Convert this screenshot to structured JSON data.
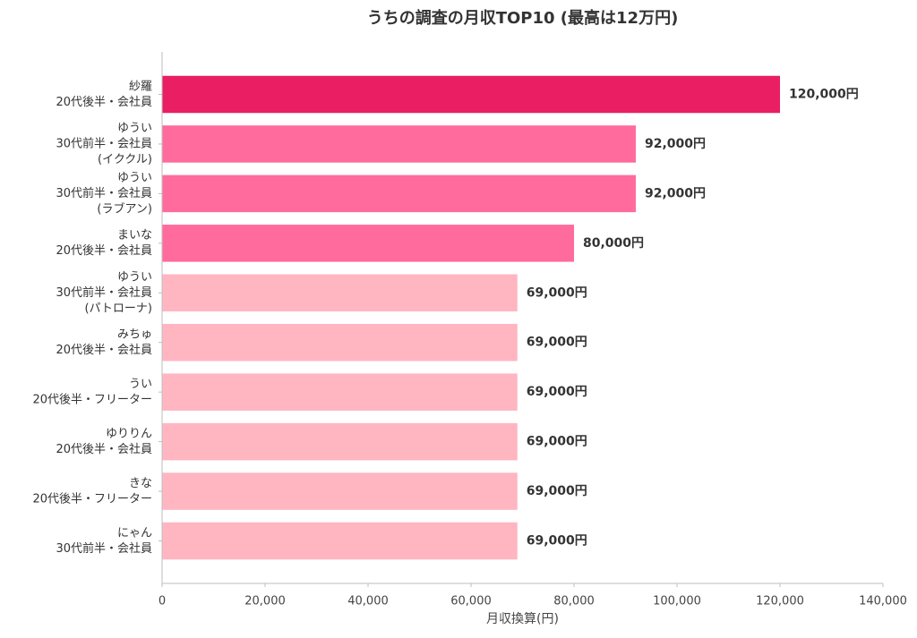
{
  "chart_data": {
    "type": "bar",
    "orientation": "horizontal",
    "title": "うちの調査の月収TOP10 (最高は12万円)",
    "xlabel": "月収換算(円)",
    "xlim": [
      0,
      140000
    ],
    "xticks": [
      0,
      20000,
      40000,
      60000,
      80000,
      100000,
      120000,
      140000
    ],
    "xtick_labels": [
      "0",
      "20,000",
      "40,000",
      "60,000",
      "80,000",
      "100,000",
      "120,000",
      "140,000"
    ],
    "grid": false,
    "categories": [
      [
        "紗羅",
        "20代後半・会社員"
      ],
      [
        "ゆうい",
        "30代前半・会社員",
        "(イククル)"
      ],
      [
        "ゆうい",
        "30代前半・会社員",
        "(ラブアン)"
      ],
      [
        "まいな",
        "20代後半・会社員"
      ],
      [
        "ゆうい",
        "30代前半・会社員",
        "(パトローナ)"
      ],
      [
        "みちゅ",
        "20代後半・会社員"
      ],
      [
        "うい",
        "20代後半・フリーター"
      ],
      [
        "ゆりりん",
        "20代後半・会社員"
      ],
      [
        "きな",
        "20代後半・フリーター"
      ],
      [
        "にゃん",
        "30代前半・会社員"
      ]
    ],
    "values": [
      120000,
      92000,
      92000,
      80000,
      69000,
      69000,
      69000,
      69000,
      69000,
      69000
    ],
    "value_labels": [
      "120,000円",
      "92,000円",
      "92,000円",
      "80,000円",
      "69,000円",
      "69,000円",
      "69,000円",
      "69,000円",
      "69,000円",
      "69,000円"
    ],
    "colors": [
      "#E91E63",
      "#FF6B9D",
      "#FF6B9D",
      "#FF6B9D",
      "#FFB6C1",
      "#FFB6C1",
      "#FFB6C1",
      "#FFB6C1",
      "#FFB6C1",
      "#FFB6C1"
    ]
  }
}
